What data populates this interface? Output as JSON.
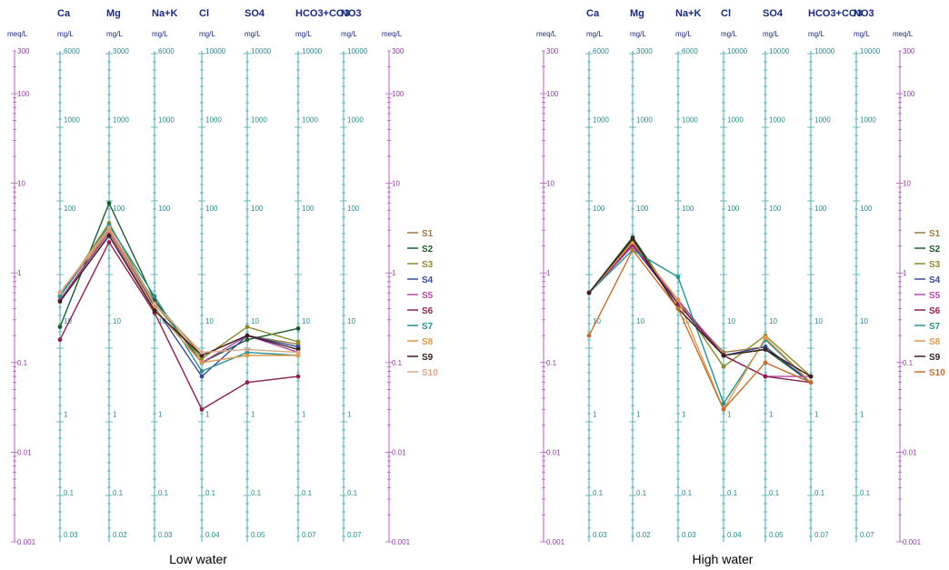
{
  "figure": {
    "panel_titles": [
      "Low water",
      "High water"
    ]
  },
  "chart_data": [
    {
      "type": "line",
      "subtype": "schoeller",
      "title": "Low water",
      "categories": [
        "Ca",
        "Mg",
        "Na+K",
        "Cl",
        "SO4",
        "HCO3+CO3",
        "NO3"
      ],
      "units": {
        "left": "meq/L",
        "right": "meq/L",
        "axes": "mg/L"
      },
      "meq_ticks": [
        "300",
        "100",
        "10",
        "1",
        "0.1",
        "0.01",
        "0.001"
      ],
      "axis_ticks": [
        [
          "6000",
          "1000",
          "100",
          "10",
          "1",
          "0.1",
          "0.03"
        ],
        [
          "3000",
          "1000",
          "100",
          "10",
          "1",
          "0.1",
          "0.02"
        ],
        [
          "6000",
          "1000",
          "100",
          "10",
          "1",
          "0.1",
          "0.03"
        ],
        [
          "10000",
          "1000",
          "100",
          "10",
          "1",
          "0.1",
          "0.04"
        ],
        [
          "10000",
          "1000",
          "100",
          "10",
          "1",
          "0.1",
          "0.05"
        ],
        [
          "10000",
          "1000",
          "100",
          "10",
          "1",
          "0.1",
          "0.07"
        ],
        [
          "10000",
          "1000",
          "100",
          "10",
          "1",
          "0.1",
          "0.07"
        ]
      ],
      "ylim_meq": [
        0.001,
        300
      ],
      "y_scale": "log",
      "legend": "right",
      "series": [
        {
          "name": "S1",
          "color": "#a07840",
          "values": [
            0.5,
            3.0,
            0.48,
            0.12,
            0.2,
            0.16,
            null
          ]
        },
        {
          "name": "S2",
          "color": "#1f5a30",
          "values": [
            0.25,
            6.0,
            0.5,
            0.1,
            0.18,
            0.24,
            null
          ]
        },
        {
          "name": "S3",
          "color": "#8c8a30",
          "values": [
            0.55,
            3.6,
            0.45,
            0.11,
            0.25,
            0.17,
            null
          ]
        },
        {
          "name": "S4",
          "color": "#3a4a9a",
          "values": [
            0.55,
            3.2,
            0.42,
            0.07,
            0.2,
            0.15,
            null
          ]
        },
        {
          "name": "S5",
          "color": "#b04aa8",
          "values": [
            0.5,
            2.8,
            0.4,
            0.1,
            0.2,
            0.13,
            null
          ]
        },
        {
          "name": "S6",
          "color": "#8a2050",
          "values": [
            0.18,
            2.2,
            0.36,
            0.03,
            0.06,
            0.07,
            null
          ]
        },
        {
          "name": "S7",
          "color": "#2a9090",
          "values": [
            0.55,
            3.4,
            0.55,
            0.08,
            0.13,
            0.12,
            null
          ]
        },
        {
          "name": "S8",
          "color": "#e09850",
          "values": [
            0.6,
            3.0,
            0.4,
            0.1,
            0.12,
            0.12,
            null
          ]
        },
        {
          "name": "S9",
          "color": "#3a2020",
          "values": [
            0.48,
            2.6,
            0.38,
            0.12,
            0.2,
            0.14,
            null
          ]
        },
        {
          "name": "S10",
          "color": "#d8a888",
          "values": [
            0.6,
            3.2,
            0.45,
            0.13,
            0.14,
            0.13,
            null
          ]
        }
      ]
    },
    {
      "type": "line",
      "subtype": "schoeller",
      "title": "High water",
      "categories": [
        "Ca",
        "Mg",
        "Na+K",
        "Cl",
        "SO4",
        "HCO3+CO3",
        "NO3"
      ],
      "units": {
        "left": "meq/L",
        "right": "meq/L",
        "axes": "mg/L"
      },
      "meq_ticks": [
        "300",
        "100",
        "10",
        "1",
        "0.1",
        "0.01",
        "0.001"
      ],
      "axis_ticks": [
        [
          "6000",
          "1000",
          "100",
          "10",
          "1",
          "0.1",
          "0.03"
        ],
        [
          "3000",
          "1000",
          "100",
          "10",
          "1",
          "0.1",
          "0.02"
        ],
        [
          "6000",
          "1000",
          "100",
          "10",
          "1",
          "0.1",
          "0.03"
        ],
        [
          "10000",
          "1000",
          "100",
          "10",
          "1",
          "0.1",
          "0.04"
        ],
        [
          "10000",
          "1000",
          "100",
          "10",
          "1",
          "0.1",
          "0.05"
        ],
        [
          "10000",
          "1000",
          "100",
          "10",
          "1",
          "0.1",
          "0.07"
        ],
        [
          "10000",
          "1000",
          "100",
          "10",
          "1",
          "0.1",
          "0.07"
        ]
      ],
      "ylim_meq": [
        0.001,
        300
      ],
      "y_scale": "log",
      "legend": "right",
      "series": [
        {
          "name": "S1",
          "color": "#a07840",
          "values": [
            0.6,
            2.3,
            0.45,
            0.13,
            0.15,
            0.06,
            null
          ]
        },
        {
          "name": "S2",
          "color": "#1f5a30",
          "values": [
            0.6,
            2.5,
            0.45,
            0.12,
            0.14,
            0.06,
            null
          ]
        },
        {
          "name": "S3",
          "color": "#8c8a30",
          "values": [
            0.6,
            2.2,
            0.5,
            0.09,
            0.2,
            0.07,
            null
          ]
        },
        {
          "name": "S4",
          "color": "#3a4a9a",
          "values": [
            0.6,
            2.0,
            0.45,
            0.12,
            0.15,
            0.06,
            null
          ]
        },
        {
          "name": "S5",
          "color": "#b04aa8",
          "values": [
            0.6,
            2.0,
            0.5,
            0.12,
            0.07,
            0.07,
            null
          ]
        },
        {
          "name": "S6",
          "color": "#8a2050",
          "values": [
            0.6,
            2.1,
            0.45,
            0.12,
            0.07,
            0.06,
            null
          ]
        },
        {
          "name": "S7",
          "color": "#2a9090",
          "values": [
            0.6,
            1.8,
            0.9,
            0.035,
            0.18,
            0.06,
            null
          ]
        },
        {
          "name": "S8",
          "color": "#e09850",
          "values": [
            0.6,
            2.2,
            0.5,
            0.03,
            0.19,
            0.06,
            null
          ]
        },
        {
          "name": "S9",
          "color": "#3a2020",
          "values": [
            0.6,
            2.4,
            0.4,
            0.12,
            0.14,
            0.07,
            null
          ]
        },
        {
          "name": "S10",
          "color": "#c07030",
          "values": [
            0.2,
            1.8,
            0.4,
            0.03,
            0.1,
            0.06,
            null
          ]
        }
      ]
    }
  ]
}
